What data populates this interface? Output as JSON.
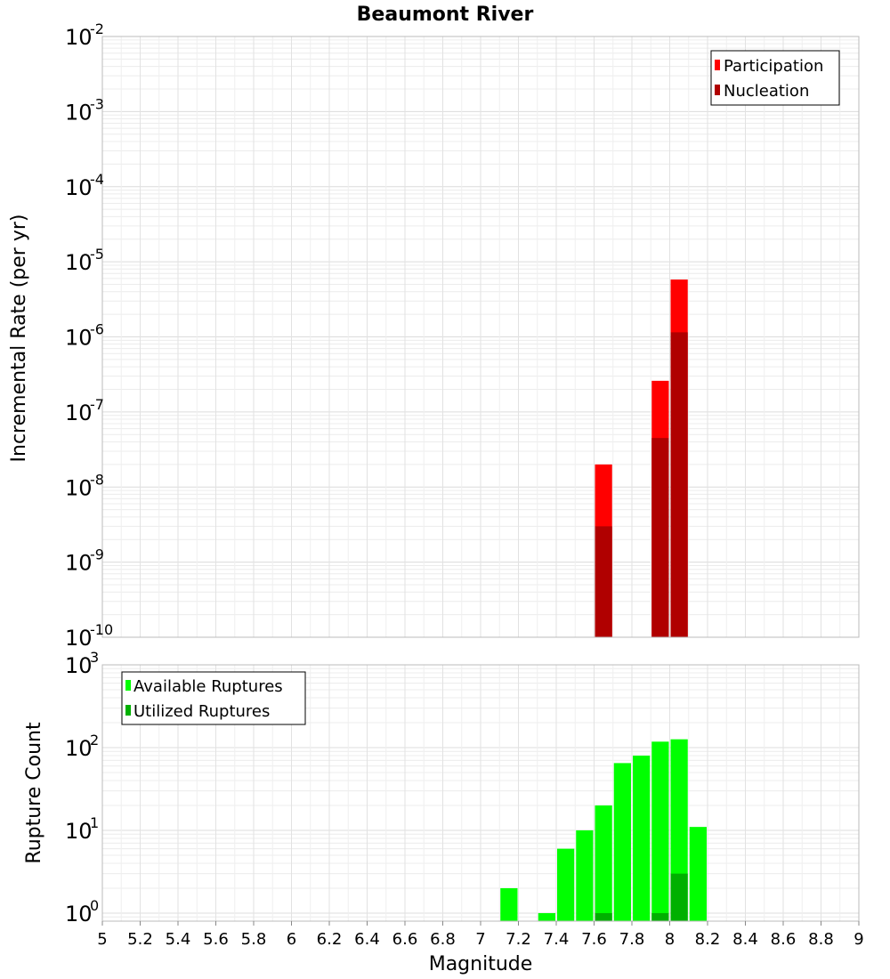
{
  "figure": {
    "title": "Beaumont River",
    "xlabel": "Magnitude"
  },
  "chart_data": [
    {
      "type": "bar",
      "title": "Beaumont River",
      "ylabel": "Incremental Rate (per yr)",
      "yscale": "log",
      "xlim": [
        5,
        9
      ],
      "ylim": [
        1e-10,
        0.01
      ],
      "grid": true,
      "legend_position": "top-right",
      "y_tick_exponents": [
        -10,
        -9,
        -8,
        -7,
        -6,
        -5,
        -4,
        -3,
        -2
      ],
      "series": [
        {
          "name": "Participation",
          "color": "#ff0000",
          "points": [
            {
              "x": 7.65,
              "y": 2e-08
            },
            {
              "x": 7.95,
              "y": 2.6e-07
            },
            {
              "x": 8.05,
              "y": 5.8e-06
            }
          ]
        },
        {
          "name": "Nucleation",
          "color": "#b00000",
          "points": [
            {
              "x": 7.65,
              "y": 3e-09
            },
            {
              "x": 7.95,
              "y": 4.5e-08
            },
            {
              "x": 8.05,
              "y": 1.15e-06
            }
          ]
        }
      ]
    },
    {
      "type": "bar",
      "ylabel": "Rupture Count",
      "xlabel": "Magnitude",
      "yscale": "log",
      "xlim": [
        5,
        9
      ],
      "ylim": [
        0.8,
        1000
      ],
      "grid": true,
      "legend_position": "top-left",
      "y_tick_exponents": [
        0,
        1,
        2,
        3
      ],
      "x_ticks": [
        "5",
        "5.2",
        "5.4",
        "5.6",
        "5.8",
        "6",
        "6.2",
        "6.4",
        "6.6",
        "6.8",
        "7",
        "7.2",
        "7.4",
        "7.6",
        "7.8",
        "8",
        "8.2",
        "8.4",
        "8.6",
        "8.8",
        "9"
      ],
      "series": [
        {
          "name": "Available Ruptures",
          "color": "#00ff00",
          "points": [
            {
              "x": 7.15,
              "y": 2
            },
            {
              "x": 7.35,
              "y": 1
            },
            {
              "x": 7.45,
              "y": 6
            },
            {
              "x": 7.55,
              "y": 10
            },
            {
              "x": 7.65,
              "y": 20
            },
            {
              "x": 7.75,
              "y": 65
            },
            {
              "x": 7.85,
              "y": 80
            },
            {
              "x": 7.95,
              "y": 118
            },
            {
              "x": 8.05,
              "y": 126
            },
            {
              "x": 8.15,
              "y": 11
            }
          ]
        },
        {
          "name": "Utilized Ruptures",
          "color": "#00b000",
          "points": [
            {
              "x": 7.65,
              "y": 1
            },
            {
              "x": 7.95,
              "y": 1
            },
            {
              "x": 8.05,
              "y": 3
            }
          ]
        }
      ]
    }
  ]
}
